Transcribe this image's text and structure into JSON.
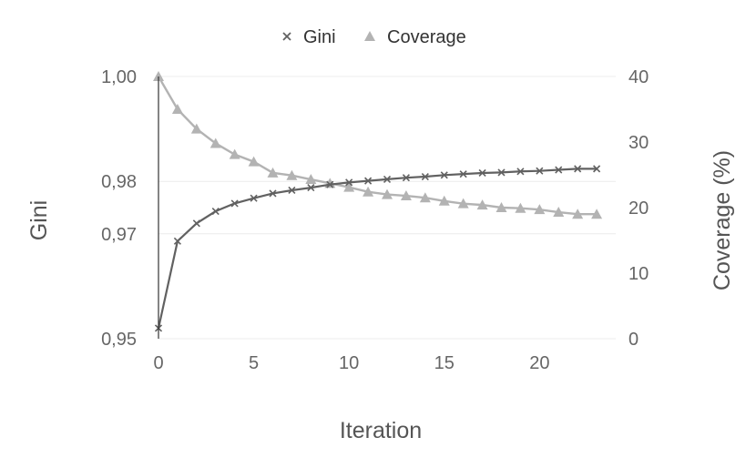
{
  "chart_data": {
    "type": "line",
    "xlabel": "Iteration",
    "ylabel": "Gini",
    "y2label": "Coverage (%)",
    "xlim": [
      0,
      24
    ],
    "ylim": [
      0.95,
      1.0
    ],
    "y2lim": [
      0,
      40
    ],
    "x_ticks": [
      0,
      5,
      10,
      15,
      20
    ],
    "x_tick_labels": [
      "0",
      "5",
      "10",
      "15",
      "20"
    ],
    "y_ticks": [
      0.95,
      0.97,
      0.98,
      1.0
    ],
    "y_tick_labels": [
      "0,95",
      "0,97",
      "0,98",
      "1,00"
    ],
    "y2_ticks": [
      0,
      10,
      20,
      30,
      40
    ],
    "y2_tick_labels": [
      "0",
      "10",
      "20",
      "30",
      "40"
    ],
    "grid": "horizontal",
    "legend_position": "top-center",
    "x": [
      0,
      1,
      2,
      3,
      4,
      5,
      6,
      7,
      8,
      9,
      10,
      11,
      12,
      13,
      14,
      15,
      16,
      17,
      18,
      19,
      20,
      21,
      22,
      23
    ],
    "series": [
      {
        "name": "Gini",
        "axis": "left",
        "marker": "x",
        "color": "#616161",
        "values": [
          0.952,
          0.9686,
          0.972,
          0.9743,
          0.9758,
          0.9768,
          0.9777,
          0.9783,
          0.9788,
          0.9794,
          0.9798,
          0.9801,
          0.9804,
          0.9807,
          0.9809,
          0.9812,
          0.9814,
          0.9816,
          0.9817,
          0.9819,
          0.982,
          0.9822,
          0.9824,
          0.9824
        ]
      },
      {
        "name": "Coverage",
        "axis": "right",
        "marker": "triangle",
        "color": "#b3b3b3",
        "values": [
          40.0,
          35.0,
          32.0,
          29.8,
          28.1,
          27.0,
          25.3,
          24.9,
          24.3,
          23.7,
          23.1,
          22.4,
          22.0,
          21.8,
          21.5,
          21.0,
          20.6,
          20.4,
          20.0,
          19.9,
          19.7,
          19.3,
          19.0,
          19.0
        ]
      }
    ]
  }
}
